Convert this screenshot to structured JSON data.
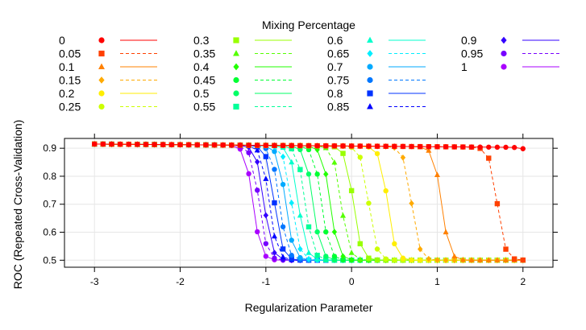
{
  "chart_data": {
    "type": "line",
    "xlabel": "Regularization Parameter",
    "ylabel": "ROC (Repeated Cross-Validation)",
    "legend_title": "Mixing Percentage",
    "legend_position": "top",
    "xlim": [
      -3.35,
      2.35
    ],
    "ylim": [
      0.475,
      0.935
    ],
    "xticks": [
      -3,
      -2,
      -1,
      0,
      1,
      2
    ],
    "yticks": [
      0.5,
      0.6,
      0.7,
      0.8,
      0.9
    ],
    "grid": true,
    "x": [
      -3,
      -2.9,
      -2.8,
      -2.7,
      -2.6,
      -2.5,
      -2.4,
      -2.3,
      -2.2,
      -2.1,
      -2,
      -1.9,
      -1.8,
      -1.7,
      -1.6,
      -1.5,
      -1.4,
      -1.3,
      -1.2,
      -1.1,
      -1,
      -0.9,
      -0.8,
      -0.7,
      -0.6,
      -0.5,
      -0.4,
      -0.3,
      -0.2,
      -0.1,
      0,
      0.1,
      0.2,
      0.3,
      0.4,
      0.5,
      0.6,
      0.7,
      0.8,
      0.9,
      1,
      1.1,
      1.2,
      1.3,
      1.4,
      1.5,
      1.6,
      1.7,
      1.8,
      1.9,
      2
    ],
    "series": [
      {
        "name": "0",
        "color": "#ff0000",
        "shape": "circle",
        "dash": "solid",
        "cutoff": 2.2
      },
      {
        "name": "0.05",
        "color": "#ff4000",
        "shape": "square",
        "dash": "dashed",
        "cutoff": 1.7
      },
      {
        "name": "0.1",
        "color": "#ff8000",
        "shape": "triangle",
        "dash": "solid",
        "cutoff": 1.05
      },
      {
        "name": "0.15",
        "color": "#ffaa00",
        "shape": "diamond",
        "dash": "dashed",
        "cutoff": 0.7
      },
      {
        "name": "0.2",
        "color": "#ffee00",
        "shape": "circle",
        "dash": "solid",
        "cutoff": 0.42
      },
      {
        "name": "0.25",
        "color": "#ccff00",
        "shape": "circle",
        "dash": "dashed",
        "cutoff": 0.2
      },
      {
        "name": "0.3",
        "color": "#99ff00",
        "shape": "square",
        "dash": "solid",
        "cutoff": 0.02
      },
      {
        "name": "0.35",
        "color": "#55ff00",
        "shape": "triangle",
        "dash": "dashed",
        "cutoff": -0.12
      },
      {
        "name": "0.4",
        "color": "#22ff00",
        "shape": "diamond",
        "dash": "solid",
        "cutoff": -0.25
      },
      {
        "name": "0.45",
        "color": "#00ff33",
        "shape": "circle",
        "dash": "dashed",
        "cutoff": -0.35
      },
      {
        "name": "0.5",
        "color": "#00ff66",
        "shape": "circle",
        "dash": "solid",
        "cutoff": -0.45
      },
      {
        "name": "0.55",
        "color": "#00ff99",
        "shape": "square",
        "dash": "dashed",
        "cutoff": -0.54
      },
      {
        "name": "0.6",
        "color": "#00ffcc",
        "shape": "triangle",
        "dash": "solid",
        "cutoff": -0.62
      },
      {
        "name": "0.65",
        "color": "#00eeff",
        "shape": "diamond",
        "dash": "dashed",
        "cutoff": -0.7
      },
      {
        "name": "0.7",
        "color": "#00aaff",
        "shape": "circle",
        "dash": "solid",
        "cutoff": -0.77
      },
      {
        "name": "0.75",
        "color": "#0077ff",
        "shape": "circle",
        "dash": "dashed",
        "cutoff": -0.84
      },
      {
        "name": "0.8",
        "color": "#0033ff",
        "shape": "square",
        "dash": "solid",
        "cutoff": -0.9
      },
      {
        "name": "0.85",
        "color": "#0000ff",
        "shape": "triangle",
        "dash": "dashed",
        "cutoff": -0.96
      },
      {
        "name": "0.9",
        "color": "#3300ff",
        "shape": "diamond",
        "dash": "solid",
        "cutoff": -1.02
      },
      {
        "name": "0.95",
        "color": "#7700ff",
        "shape": "circle",
        "dash": "dashed",
        "cutoff": -1.08
      },
      {
        "name": "1",
        "color": "#aa00ff",
        "shape": "circle",
        "dash": "solid",
        "cutoff": -1.15
      }
    ]
  }
}
